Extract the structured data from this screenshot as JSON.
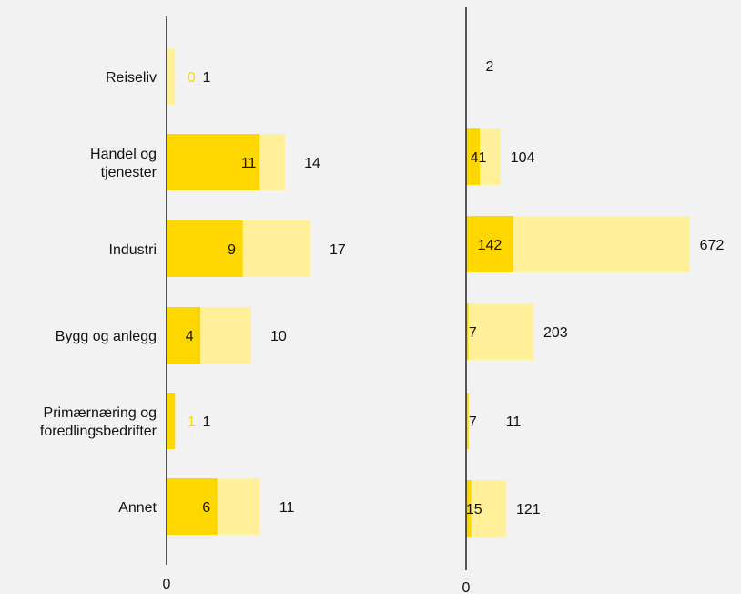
{
  "chart_data": [
    {
      "type": "bar",
      "orientation": "horizontal",
      "stacked": "overlay",
      "categories": [
        "Reiseliv",
        "Handel og tjenester",
        "Industri",
        "Bygg og anlegg",
        "Primærnæring og foredlingsbedrifter",
        "Annet"
      ],
      "category_labels": [
        [
          "Reiseliv"
        ],
        [
          "Handel og",
          "tjenester"
        ],
        [
          "Industri"
        ],
        [
          "Bygg og anlegg"
        ],
        [
          "Primærnæring og",
          "foredlingsbedrifter"
        ],
        [
          "Annet"
        ]
      ],
      "series": [
        {
          "values": [
            0,
            11,
            9,
            4,
            1,
            6
          ],
          "color": "#ffd700"
        },
        {
          "values": [
            1,
            14,
            17,
            10,
            1,
            11
          ],
          "color": "#fff099"
        }
      ],
      "xlim": [
        0,
        20
      ],
      "x_tick_labels": [
        "0"
      ],
      "grid": false
    },
    {
      "type": "bar",
      "orientation": "horizontal",
      "stacked": "overlay",
      "categories": [
        "Reiseliv",
        "Handel og tjenester",
        "Industri",
        "Bygg og anlegg",
        "Primærnæring og foredlingsbedrifter",
        "Annet"
      ],
      "series": [
        {
          "values": [
            0,
            41,
            142,
            7,
            7,
            15
          ],
          "color": "#ffd700"
        },
        {
          "values": [
            2,
            104,
            672,
            203,
            11,
            121
          ],
          "color": "#fff099"
        }
      ],
      "xlim": [
        0,
        750
      ],
      "x_tick_labels": [
        "0"
      ],
      "grid": false
    }
  ]
}
